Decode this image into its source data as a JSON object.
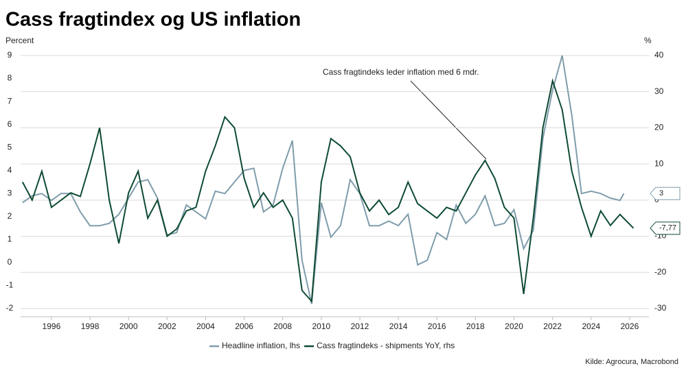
{
  "chart_data": {
    "type": "line",
    "title": "Cass fragtindex og US inflation",
    "y_label": "Percent",
    "y2_label": "%",
    "source": "Kilde: Agrocura, Macrobond",
    "annotation": "Cass fragtindeks leder inflation med 6 mdr.",
    "xlim": [
      1994.4,
      2027.0
    ],
    "xticks": [
      1996,
      1998,
      2000,
      2002,
      2004,
      2006,
      2008,
      2010,
      2012,
      2014,
      2016,
      2018,
      2020,
      2022,
      2024,
      2026
    ],
    "ylim": [
      -2,
      9
    ],
    "yticks": [
      -2,
      -1,
      0,
      1,
      2,
      3,
      4,
      5,
      6,
      7,
      8,
      9
    ],
    "y2lim": [
      -30,
      40
    ],
    "y2ticks": [
      -30,
      -20,
      -10,
      0,
      10,
      20,
      30,
      40
    ],
    "grid": true,
    "legend": "bottom",
    "series": [
      {
        "name": "Headline inflation, lhs",
        "color": "#7f9cab",
        "axis": "y",
        "x": [
          1994.5,
          1995,
          1995.5,
          1996,
          1996.5,
          1997,
          1997.5,
          1998,
          1998.5,
          1999,
          1999.5,
          2000,
          2000.5,
          2001,
          2001.5,
          2002,
          2002.5,
          2003,
          2003.5,
          2004,
          2004.5,
          2005,
          2005.5,
          2006,
          2006.5,
          2007,
          2007.5,
          2008,
          2008.5,
          2009,
          2009.5,
          2010,
          2010.5,
          2011,
          2011.5,
          2012,
          2012.5,
          2013,
          2013.5,
          2014,
          2014.5,
          2015,
          2015.5,
          2016,
          2016.5,
          2017,
          2017.5,
          2018,
          2018.5,
          2019,
          2019.5,
          2020,
          2020.5,
          2021,
          2021.5,
          2022,
          2022.5,
          2023,
          2023.5,
          2024,
          2024.5,
          2025,
          2025.5,
          2025.7
        ],
        "values": [
          2.6,
          2.9,
          3.0,
          2.7,
          3.0,
          3.0,
          2.2,
          1.6,
          1.6,
          1.7,
          2.1,
          2.8,
          3.5,
          3.6,
          2.8,
          1.2,
          1.3,
          2.5,
          2.2,
          1.9,
          3.1,
          3.0,
          3.5,
          4.0,
          4.1,
          2.2,
          2.5,
          4.1,
          5.3,
          0.1,
          -1.8,
          2.6,
          1.1,
          1.6,
          3.6,
          3.0,
          1.6,
          1.6,
          1.8,
          1.6,
          2.1,
          -0.1,
          0.1,
          1.3,
          1.0,
          2.5,
          1.7,
          2.1,
          2.9,
          1.6,
          1.7,
          2.3,
          0.6,
          1.4,
          5.4,
          7.5,
          9.0,
          6.4,
          3.0,
          3.1,
          3.0,
          2.8,
          2.7,
          3
        ]
      },
      {
        "name": "Cass fragtindeks - shipments YoY, rhs",
        "color": "#0d4a32",
        "axis": "y2",
        "x": [
          1994.5,
          1995,
          1995.5,
          1996,
          1996.5,
          1997,
          1997.5,
          1998,
          1998.5,
          1999,
          1999.5,
          2000,
          2000.5,
          2001,
          2001.5,
          2002,
          2002.5,
          2003,
          2003.5,
          2004,
          2004.5,
          2005,
          2005.5,
          2006,
          2006.5,
          2007,
          2007.5,
          2008,
          2008.5,
          2009,
          2009.5,
          2010,
          2010.5,
          2011,
          2011.5,
          2012,
          2012.5,
          2013,
          2013.5,
          2014,
          2014.5,
          2015,
          2015.5,
          2016,
          2016.5,
          2017,
          2017.5,
          2018,
          2018.5,
          2019,
          2019.5,
          2020,
          2020.5,
          2021,
          2021.5,
          2022,
          2022.5,
          2023,
          2023.5,
          2024,
          2024.5,
          2025,
          2025.5,
          2026.2
        ],
        "values": [
          5,
          0,
          8,
          -2,
          0,
          2,
          1,
          10,
          20,
          0,
          -12,
          2,
          8,
          -5,
          0,
          -10,
          -8,
          -3,
          -2,
          8,
          15,
          23,
          20,
          6,
          -2,
          2,
          -2,
          0,
          -5,
          -25,
          -28,
          5,
          17,
          15,
          12,
          2,
          -3,
          0,
          -4,
          -2,
          5,
          -1,
          -3,
          -5,
          -2,
          -3,
          2,
          7,
          11,
          6,
          -2,
          -5,
          -26,
          -5,
          20,
          33,
          25,
          8,
          -2,
          -10,
          -3,
          -7,
          -4,
          -7.77
        ],
        "last_label": "-7,77"
      }
    ]
  }
}
